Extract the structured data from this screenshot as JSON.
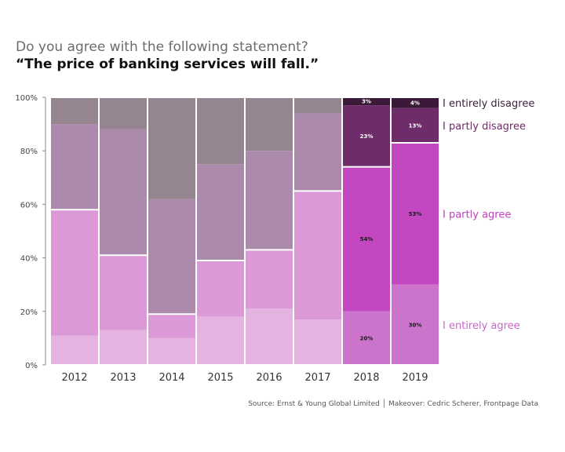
{
  "title": {
    "question": "Do you agree with the following statement?",
    "statement": "“The price of banking services will fall.”"
  },
  "source": "Source: Ernst & Young Global Limited │ Makeover: Cedric Scherer, Frontpage Data",
  "colors": {
    "entirely_agree_old": "#e5b3e0",
    "partly_agree_old": "#db99d8",
    "partly_disagree_old": "#ab8aab",
    "entirely_disagree_old": "#958590",
    "entirely_agree_new": "#cc74cb",
    "partly_agree_new": "#c247c0",
    "partly_disagree_new": "#6e2c6a",
    "entirely_disagree_new": "#3a1a38",
    "label_entirely_disagree": "#3d1f3b",
    "label_partly_disagree": "#6e2c6a",
    "label_partly_agree": "#bf3fbd",
    "label_entirely_agree": "#c966c8"
  },
  "chart_data": {
    "type": "bar",
    "stacked": true,
    "categories": [
      "2012",
      "2013",
      "2014",
      "2015",
      "2016",
      "2017",
      "2018",
      "2019"
    ],
    "series": [
      {
        "name": "I entirely agree",
        "values": [
          11,
          13,
          10,
          18,
          21,
          17,
          20,
          30
        ]
      },
      {
        "name": "I partly agree",
        "values": [
          47,
          28,
          9,
          21,
          22,
          48,
          54,
          53
        ]
      },
      {
        "name": "I partly disagree",
        "values": [
          32,
          47,
          43,
          36,
          37,
          29,
          23,
          13
        ]
      },
      {
        "name": "I entirely disagree",
        "values": [
          10,
          12,
          38,
          25,
          20,
          6,
          3,
          4
        ]
      }
    ],
    "highlight_categories": [
      "2018",
      "2019"
    ],
    "data_labels": {
      "2018": [
        "20%",
        "54%",
        "23%",
        "3%"
      ],
      "2019": [
        "30%",
        "53%",
        "13%",
        "4%"
      ]
    },
    "yticks": [
      "0%",
      "20%",
      "40%",
      "60%",
      "80%",
      "100%"
    ],
    "ylim": [
      0,
      100
    ],
    "legend_position": "right"
  }
}
